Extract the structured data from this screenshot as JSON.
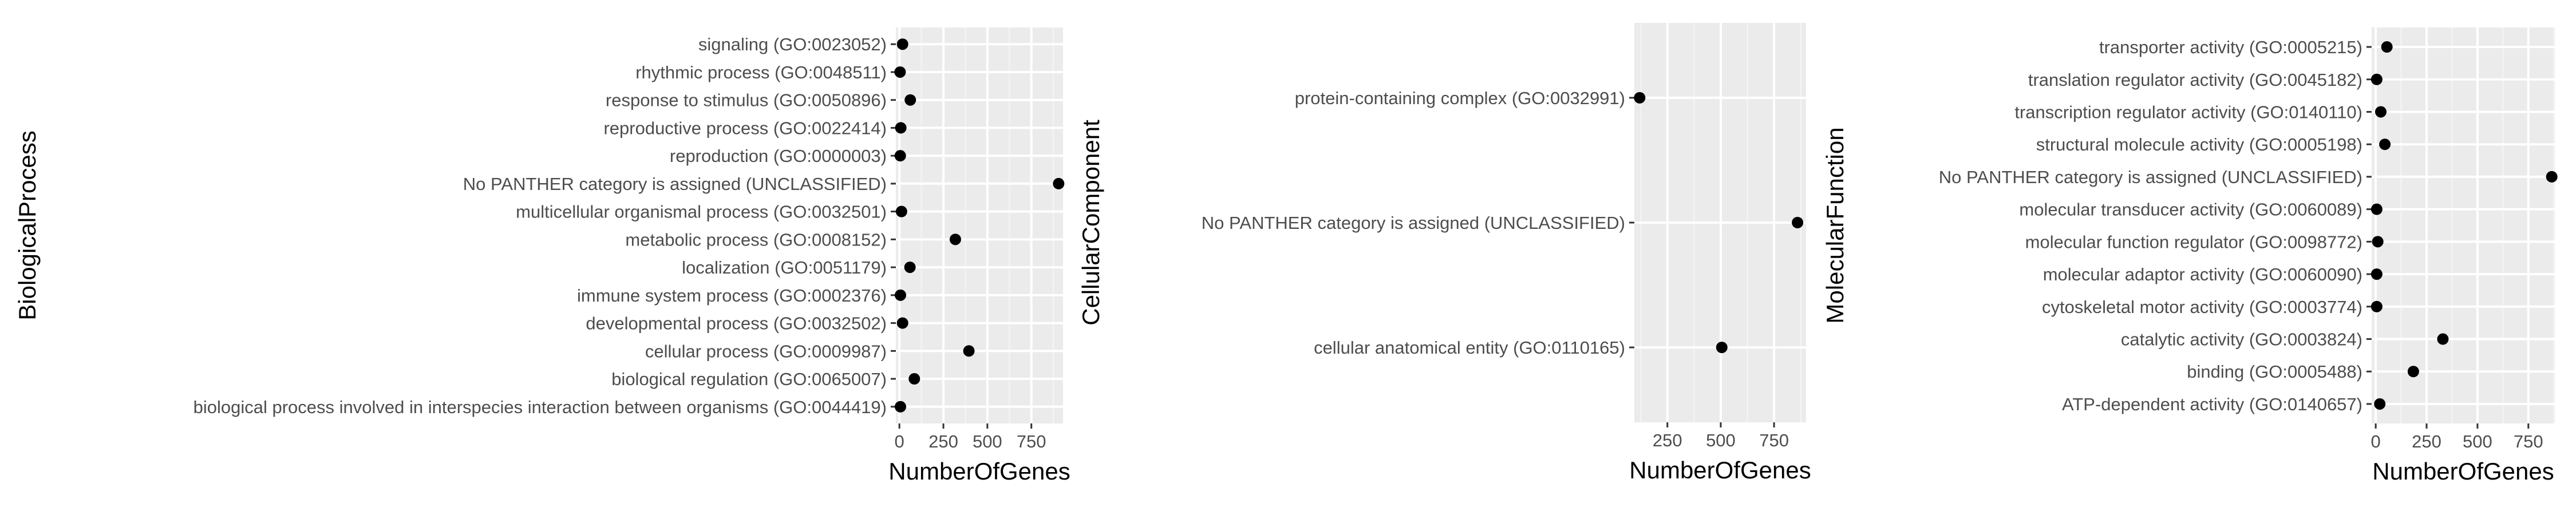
{
  "chart_data": [
    {
      "type": "scatter",
      "ylabel": "BiologicalProcess",
      "xlabel": "NumberOfGenes",
      "xlim": [
        -20,
        930
      ],
      "xticks": [
        0,
        250,
        500,
        750
      ],
      "xtick_labels": [
        "0",
        "250",
        "500",
        "750"
      ],
      "grid": true,
      "categories": [
        "signaling (GO:0023052)",
        "rhythmic process (GO:0048511)",
        "response to stimulus (GO:0050896)",
        "reproductive process (GO:0022414)",
        "reproduction (GO:0000003)",
        "No PANTHER category is assigned (UNCLASSIFIED)",
        "multicellular organismal process (GO:0032501)",
        "metabolic process (GO:0008152)",
        "localization (GO:0051179)",
        "immune system process (GO:0002376)",
        "developmental process (GO:0032502)",
        "cellular process (GO:0009987)",
        "biological regulation (GO:0065007)",
        "biological process involved in interspecies interaction between organisms (GO:0044419)"
      ],
      "values": [
        18,
        4,
        62,
        8,
        5,
        905,
        12,
        318,
        60,
        6,
        18,
        395,
        85,
        6
      ]
    },
    {
      "type": "scatter",
      "ylabel": "CellularComponent",
      "xlabel": "NumberOfGenes",
      "xlim": [
        95,
        900
      ],
      "xticks": [
        250,
        500,
        750
      ],
      "xtick_labels": [
        "250",
        "500",
        "750"
      ],
      "grid": true,
      "categories": [
        "protein-containing complex (GO:0032991)",
        "No PANTHER category is assigned (UNCLASSIFIED)",
        "cellular anatomical entity (GO:0110165)"
      ],
      "values": [
        120,
        860,
        505
      ]
    },
    {
      "type": "scatter",
      "ylabel": "MolecularFunction",
      "xlabel": "NumberOfGenes",
      "xlim": [
        -20,
        880
      ],
      "xticks": [
        0,
        250,
        500,
        750
      ],
      "xtick_labels": [
        "0",
        "250",
        "500",
        "750"
      ],
      "grid": true,
      "categories": [
        "transporter activity (GO:0005215)",
        "translation regulator activity (GO:0045182)",
        "transcription regulator activity (GO:0140110)",
        "structural molecule activity (GO:0005198)",
        "No PANTHER category is assigned (UNCLASSIFIED)",
        "molecular transducer activity (GO:0060089)",
        "molecular function regulator (GO:0098772)",
        "molecular adaptor activity (GO:0060090)",
        "cytoskeletal motor activity (GO:0003774)",
        "catalytic activity (GO:0003824)",
        "binding (GO:0005488)",
        "ATP-dependent activity (GO:0140657)"
      ],
      "values": [
        55,
        5,
        25,
        45,
        865,
        5,
        10,
        5,
        5,
        330,
        185,
        20
      ]
    }
  ]
}
